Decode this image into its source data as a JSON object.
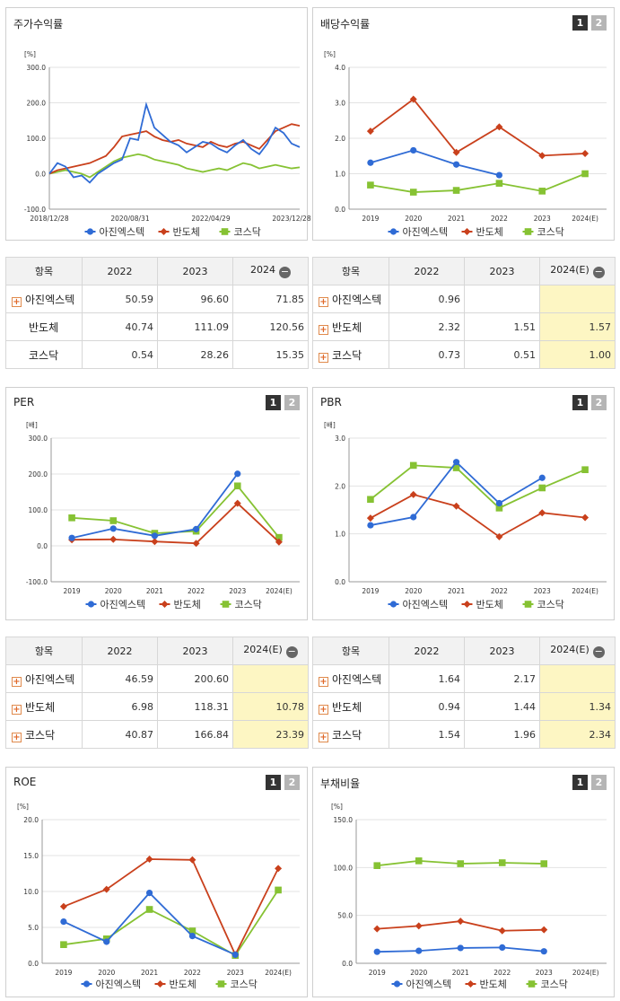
{
  "legend": [
    "아진엑스텍",
    "반도체",
    "코스닥"
  ],
  "colors": {
    "s1": "#2f6bd5",
    "s2": "#c9401c",
    "s3": "#86c233"
  },
  "pager": {
    "p1": "1",
    "p2": "2"
  },
  "charts": {
    "return": {
      "title": "주가수익률",
      "chart_data": {
        "type": "line",
        "ylabel": "[%]",
        "ylim": [
          -100,
          300
        ],
        "yticks": [
          "300.0",
          "200.0",
          "100.0",
          "0.0",
          "-100.0"
        ],
        "xtick_labels": [
          "2018/12/28",
          "2020/08/31",
          "2022/04/29",
          "2023/12/28"
        ],
        "x": [
          "2018/12/28",
          "2019/03",
          "2019/06",
          "2019/09",
          "2019/12",
          "2020/03",
          "2020/06",
          "2020/08",
          "2020/10",
          "2020/12",
          "2021/02",
          "2021/04",
          "2021/06",
          "2021/07",
          "2021/09",
          "2021/11",
          "2022/01",
          "2022/03",
          "2022/05",
          "2022/07",
          "2022/09",
          "2022/11",
          "2023/01",
          "2023/03",
          "2023/05",
          "2023/07",
          "2023/09",
          "2023/11",
          "2024/01",
          "2024/02",
          "2024/03",
          "2024/04"
        ],
        "series": [
          {
            "name": "아진엑스텍",
            "values": [
              0,
              30,
              20,
              -10,
              -5,
              -25,
              0,
              15,
              30,
              40,
              100,
              95,
              195,
              130,
              110,
              90,
              80,
              60,
              75,
              90,
              85,
              70,
              60,
              80,
              95,
              70,
              55,
              85,
              130,
              115,
              85,
              75
            ]
          },
          {
            "name": "반도체",
            "values": [
              0,
              10,
              15,
              20,
              25,
              30,
              40,
              50,
              75,
              105,
              110,
              115,
              120,
              105,
              95,
              90,
              95,
              85,
              80,
              75,
              90,
              80,
              75,
              85,
              90,
              80,
              70,
              95,
              120,
              130,
              140,
              135
            ]
          },
          {
            "name": "코스닥",
            "values": [
              0,
              5,
              10,
              5,
              0,
              -10,
              5,
              20,
              35,
              45,
              50,
              55,
              50,
              40,
              35,
              30,
              25,
              15,
              10,
              5,
              10,
              15,
              10,
              20,
              30,
              25,
              15,
              20,
              25,
              20,
              15,
              18
            ]
          }
        ]
      }
    },
    "dividend": {
      "title": "배당수익률",
      "chart_data": {
        "type": "line",
        "ylabel": "[%]",
        "ylim": [
          0,
          4
        ],
        "yticks": [
          "4.0",
          "3.0",
          "2.0",
          "1.0",
          "0.0"
        ],
        "categories": [
          "2019",
          "2020",
          "2021",
          "2022",
          "2023",
          "2024(E)"
        ],
        "series": [
          {
            "name": "아진엑스텍",
            "values": [
              1.31,
              1.66,
              1.26,
              0.96,
              null,
              null
            ]
          },
          {
            "name": "반도체",
            "values": [
              2.2,
              3.1,
              1.6,
              2.32,
              1.51,
              1.57
            ]
          },
          {
            "name": "코스닥",
            "values": [
              0.68,
              0.48,
              0.53,
              0.73,
              0.51,
              1.0
            ]
          }
        ]
      }
    },
    "per": {
      "title": "PER",
      "chart_data": {
        "type": "line",
        "ylabel": "[배]",
        "ylim": [
          -100,
          300
        ],
        "yticks": [
          "300.0",
          "200.0",
          "100.0",
          "0.0",
          "-100.0"
        ],
        "categories": [
          "2019",
          "2020",
          "2021",
          "2022",
          "2023",
          "2024(E)"
        ],
        "series": [
          {
            "name": "아진엑스텍",
            "values": [
              22,
              48,
              28,
              46.59,
              200.6,
              null
            ]
          },
          {
            "name": "반도체",
            "values": [
              17,
              18,
              12,
              6.98,
              118.31,
              10.78
            ]
          },
          {
            "name": "코스닥",
            "values": [
              78,
              70,
              35,
              40.87,
              166.84,
              23.39
            ]
          }
        ]
      }
    },
    "pbr": {
      "title": "PBR",
      "chart_data": {
        "type": "line",
        "ylabel": "[배]",
        "ylim": [
          0,
          3
        ],
        "yticks": [
          "3.0",
          "2.0",
          "1.0",
          "0.0"
        ],
        "categories": [
          "2019",
          "2020",
          "2021",
          "2022",
          "2023",
          "2024(E)"
        ],
        "series": [
          {
            "name": "아진엑스텍",
            "values": [
              1.18,
              1.35,
              2.5,
              1.64,
              2.17,
              null
            ]
          },
          {
            "name": "반도체",
            "values": [
              1.33,
              1.82,
              1.58,
              0.94,
              1.44,
              1.34
            ]
          },
          {
            "name": "코스닥",
            "values": [
              1.72,
              2.43,
              2.38,
              1.54,
              1.96,
              2.34
            ]
          }
        ]
      }
    },
    "roe": {
      "title": "ROE",
      "chart_data": {
        "type": "line",
        "ylabel": "[%]",
        "ylim": [
          0,
          20
        ],
        "yticks": [
          "20.0",
          "15.0",
          "10.0",
          "5.0",
          "0.0"
        ],
        "categories": [
          "2019",
          "2020",
          "2021",
          "2022",
          "2023",
          "2024(E)"
        ],
        "series": [
          {
            "name": "아진엑스텍",
            "values": [
              5.8,
              3.0,
              9.8,
              3.8,
              1.2,
              null
            ]
          },
          {
            "name": "반도체",
            "values": [
              7.9,
              10.3,
              14.5,
              14.4,
              1.2,
              13.2
            ]
          },
          {
            "name": "코스닥",
            "values": [
              2.6,
              3.4,
              7.5,
              4.5,
              1.1,
              10.2
            ]
          }
        ]
      }
    },
    "debt": {
      "title": "부채비율",
      "chart_data": {
        "type": "line",
        "ylabel": "[%]",
        "ylim": [
          0,
          150
        ],
        "yticks": [
          "150.0",
          "100.0",
          "50.0",
          "0.0"
        ],
        "categories": [
          "2019",
          "2020",
          "2021",
          "2022",
          "2023",
          "2024(E)"
        ],
        "series": [
          {
            "name": "아진엑스텍",
            "values": [
              12,
              13,
              16,
              16.5,
              12.5,
              null
            ]
          },
          {
            "name": "반도체",
            "values": [
              36,
              39,
              44,
              34,
              35,
              null
            ]
          },
          {
            "name": "코스닥",
            "values": [
              102,
              107,
              104,
              105,
              104,
              null
            ]
          }
        ]
      }
    }
  },
  "tables": {
    "return": {
      "headers": [
        "항목",
        "2022",
        "2023",
        "2024"
      ],
      "rows": [
        {
          "name": "아진엑스텍",
          "values": [
            "50.59",
            "96.60",
            "71.85"
          ]
        },
        {
          "name": "반도체",
          "values": [
            "40.74",
            "111.09",
            "120.56"
          ]
        },
        {
          "name": "코스닥",
          "values": [
            "0.54",
            "28.26",
            "15.35"
          ]
        }
      ]
    },
    "dividend": {
      "headers": [
        "항목",
        "2022",
        "2023",
        "2024(E)"
      ],
      "rows": [
        {
          "name": "아진엑스텍",
          "values": [
            "0.96",
            "",
            ""
          ]
        },
        {
          "name": "반도체",
          "values": [
            "2.32",
            "1.51",
            "1.57"
          ]
        },
        {
          "name": "코스닥",
          "values": [
            "0.73",
            "0.51",
            "1.00"
          ]
        }
      ]
    },
    "per": {
      "headers": [
        "항목",
        "2022",
        "2023",
        "2024(E)"
      ],
      "rows": [
        {
          "name": "아진엑스텍",
          "values": [
            "46.59",
            "200.60",
            ""
          ]
        },
        {
          "name": "반도체",
          "values": [
            "6.98",
            "118.31",
            "10.78"
          ]
        },
        {
          "name": "코스닥",
          "values": [
            "40.87",
            "166.84",
            "23.39"
          ]
        }
      ]
    },
    "pbr": {
      "headers": [
        "항목",
        "2022",
        "2023",
        "2024(E)"
      ],
      "rows": [
        {
          "name": "아진엑스텍",
          "values": [
            "1.64",
            "2.17",
            ""
          ]
        },
        {
          "name": "반도체",
          "values": [
            "0.94",
            "1.44",
            "1.34"
          ]
        },
        {
          "name": "코스닥",
          "values": [
            "1.54",
            "1.96",
            "2.34"
          ]
        }
      ]
    }
  }
}
